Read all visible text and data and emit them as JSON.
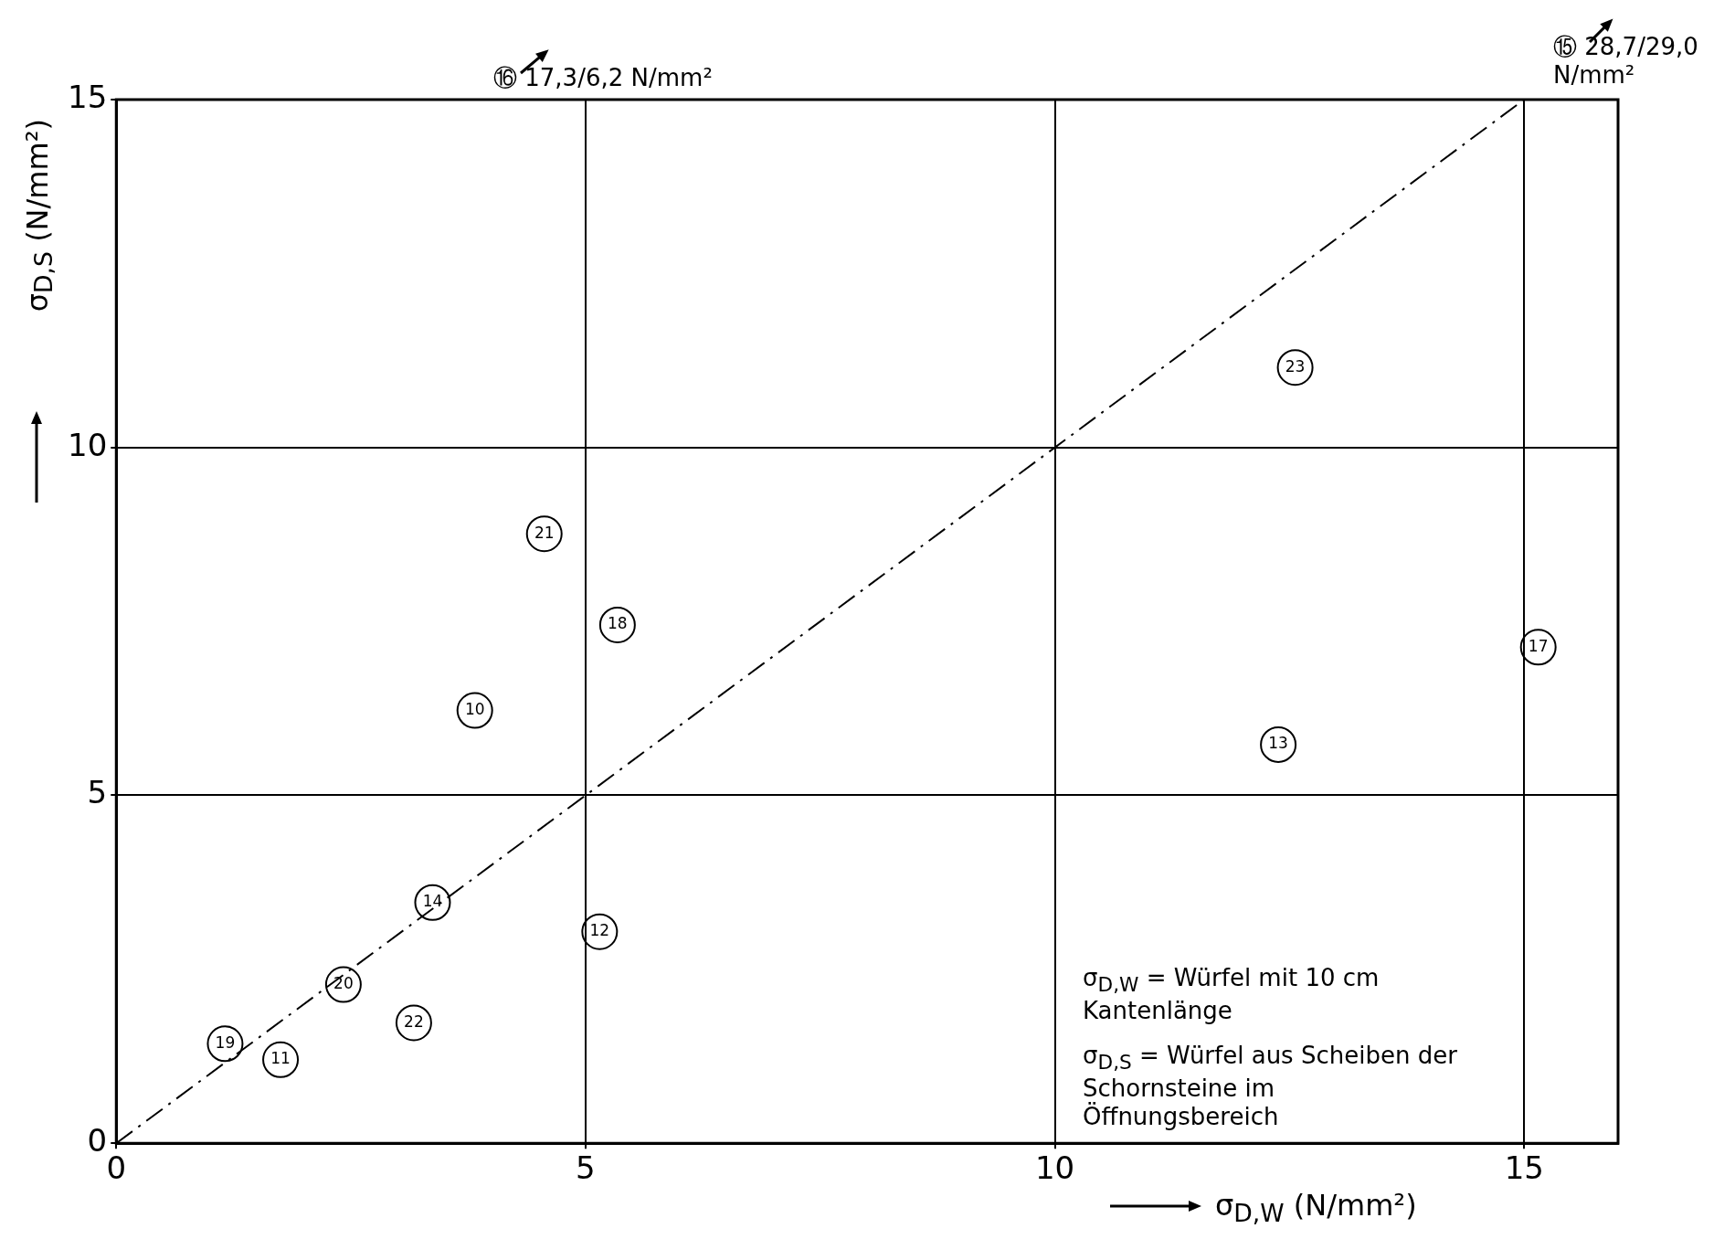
{
  "chart_data": {
    "type": "scatter",
    "xlabel": "σ$_{D,W}$ (N/mm²)",
    "ylabel": "σ$_{D,S}$ (N/mm²)",
    "xlim": [
      0,
      16
    ],
    "ylim": [
      0,
      15
    ],
    "xticks": [
      0,
      5,
      10,
      15
    ],
    "yticks": [
      0,
      5,
      10,
      15
    ],
    "grid": true,
    "marker": "circle",
    "series": [
      {
        "type": "scatter",
        "color": "#000000",
        "x": [
          1.16,
          1.75,
          2.42,
          3.17,
          3.37,
          3.82,
          4.56,
          5.34,
          5.15,
          12.56,
          12.38,
          15.15
        ],
        "values": [
          1.43,
          1.2,
          2.28,
          1.73,
          3.46,
          6.22,
          8.76,
          7.45,
          3.04,
          11.15,
          5.73,
          7.13
        ]
      },
      {
        "type": "line",
        "color": "#000000",
        "marker": "none",
        "line_style": "dashed",
        "x": [
          0,
          15
        ],
        "values": [
          0,
          15
        ]
      }
    ],
    "annotations": [
      {
        "text": "19",
        "x": 1.16,
        "y": 1.43
      },
      {
        "text": "11",
        "x": 1.75,
        "y": 1.2
      },
      {
        "text": "20",
        "x": 2.42,
        "y": 2.28
      },
      {
        "text": "22",
        "x": 3.17,
        "y": 1.73
      },
      {
        "text": "14",
        "x": 3.37,
        "y": 3.46
      },
      {
        "text": "10",
        "x": 3.82,
        "y": 6.22
      },
      {
        "text": "21",
        "x": 4.56,
        "y": 8.76
      },
      {
        "text": "18",
        "x": 5.34,
        "y": 7.45
      },
      {
        "text": "12",
        "x": 5.15,
        "y": 3.04
      },
      {
        "text": "23",
        "x": 12.56,
        "y": 11.15
      },
      {
        "text": "13",
        "x": 12.38,
        "y": 5.73
      },
      {
        "text": "17",
        "x": 15.15,
        "y": 7.13
      },
      "⑯ 17,3/6,2 N/mm²",
      "⑮ 28,7/29,0 N/mm²",
      "σ$_{D,W}$ = Würfel mit 10 cm Kantenlänge",
      "σ$_{D,S}$ = Würfel aus Scheiben der Schornsteine im Öffnungsbereich"
    ]
  }
}
